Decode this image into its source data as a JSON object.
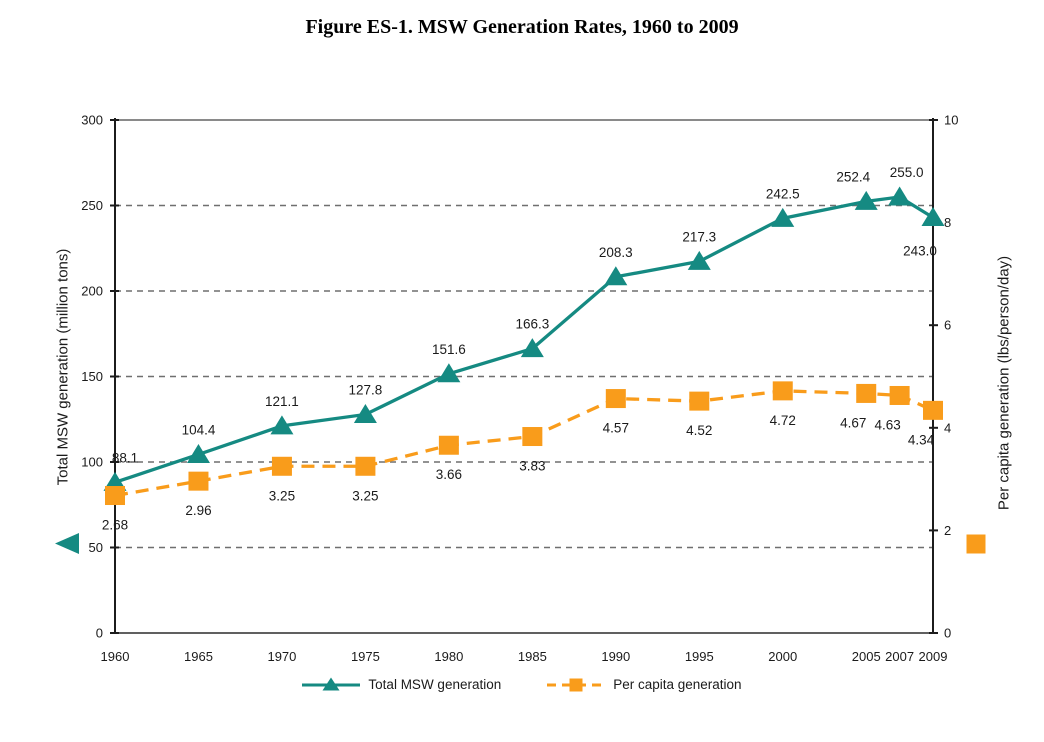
{
  "chart_data": {
    "type": "line",
    "title": "Figure ES-1. MSW Generation Rates, 1960 to 2009",
    "x": [
      1960,
      1965,
      1970,
      1975,
      1980,
      1985,
      1990,
      1995,
      2000,
      2005,
      2007,
      2009
    ],
    "x_tick_labels": [
      "1960",
      "1965",
      "1970",
      "1975",
      "1980",
      "1985",
      "1990",
      "1995",
      "2000",
      "2005",
      "2007",
      "2009"
    ],
    "series": [
      {
        "name": "Total MSW generation",
        "axis": "left",
        "color": "#158A82",
        "marker": "triangle",
        "line_style": "solid",
        "values": [
          88.1,
          104.4,
          121.1,
          127.8,
          151.6,
          166.3,
          208.3,
          217.3,
          242.5,
          252.4,
          255.0,
          243.0
        ],
        "labels": [
          "88.1",
          "104.4",
          "121.1",
          "127.8",
          "151.6",
          "166.3",
          "208.3",
          "217.3",
          "242.5",
          "252.4",
          "255.0",
          "243.0"
        ],
        "label_position": "above",
        "label_offsets": [
          [
            10,
            -20
          ],
          null,
          null,
          null,
          null,
          null,
          null,
          null,
          null,
          [
            -13,
            -20
          ],
          [
            7,
            -20
          ],
          [
            -13,
            38
          ]
        ]
      },
      {
        "name": "Per capita generation",
        "axis": "right",
        "color": "#F99C1B",
        "marker": "square",
        "line_style": "dashed",
        "values": [
          2.68,
          2.96,
          3.25,
          3.25,
          3.66,
          3.83,
          4.57,
          4.52,
          4.72,
          4.67,
          4.63,
          4.34
        ],
        "labels": [
          "2.68",
          "2.96",
          "3.25",
          "3.25",
          "3.66",
          "3.83",
          "4.57",
          "4.52",
          "4.72",
          "4.67",
          "4.63",
          "4.34"
        ],
        "label_position": "below",
        "label_offsets": [
          null,
          null,
          null,
          null,
          null,
          null,
          null,
          null,
          null,
          [
            -13,
            34
          ],
          [
            -12,
            34
          ],
          [
            -12,
            34
          ]
        ]
      }
    ],
    "left_axis": {
      "label": "Total MSW generation (million tons)",
      "min": 0,
      "max": 300,
      "step": 50,
      "tick_labels": [
        "0",
        "50",
        "100",
        "150",
        "200",
        "250",
        "300"
      ]
    },
    "right_axis": {
      "label": "Per capita generation (lbs/person/day)",
      "min": 0,
      "max": 10,
      "step": 2,
      "tick_labels": [
        "0",
        "2",
        "4",
        "6",
        "8",
        "10"
      ]
    },
    "grid": {
      "horizontal_dashed_left_values": [
        50,
        100,
        150,
        200,
        250
      ],
      "top_border": true
    },
    "legend": {
      "position": "bottom",
      "entries": [
        {
          "label": "Total MSW generation"
        },
        {
          "label": "Per capita generation"
        }
      ]
    },
    "colors": {
      "teal": "#158A82",
      "orange": "#F99C1B",
      "gridline": "#6f6f6f",
      "axis_line": "#1c1c1c",
      "frame_gray": "#8a8a8a",
      "text": "#1b1b1b"
    }
  }
}
